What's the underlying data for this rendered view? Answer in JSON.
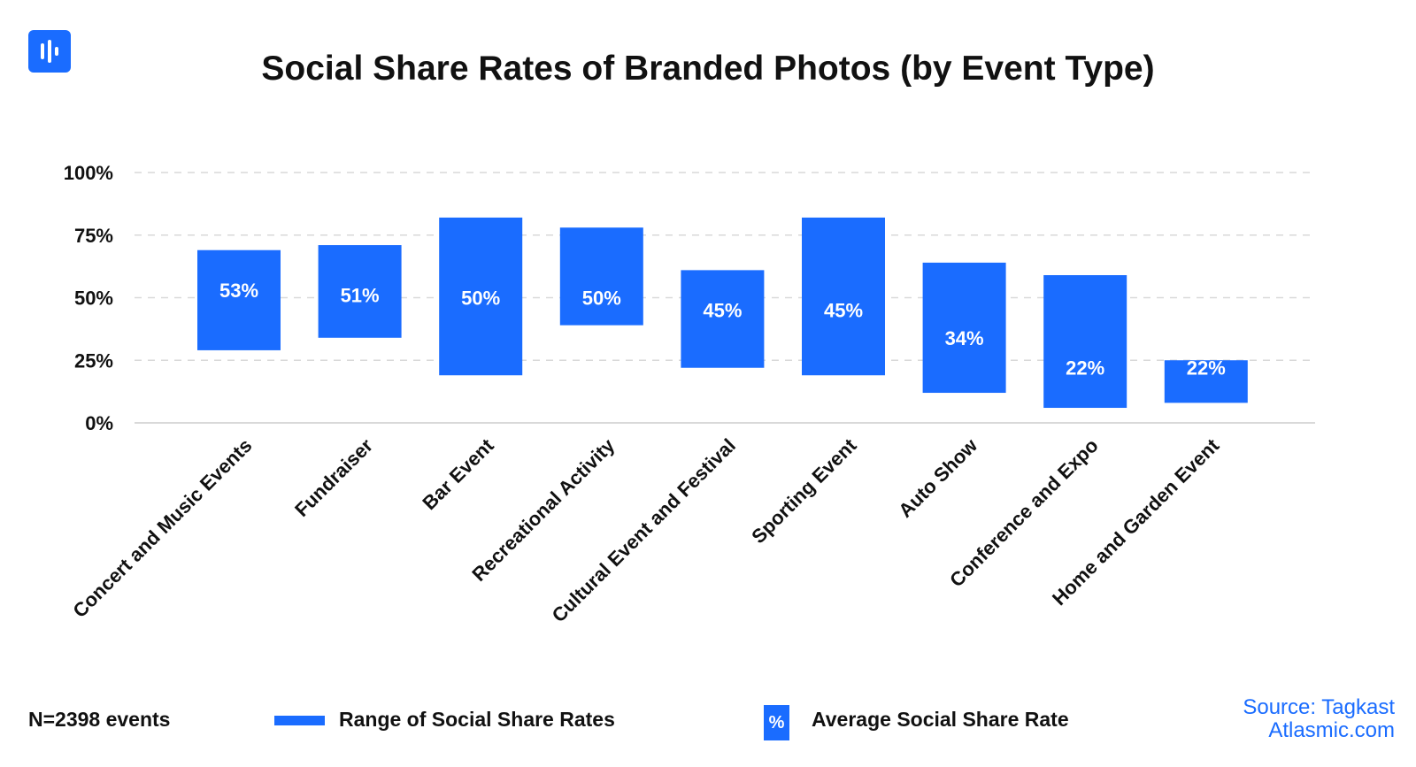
{
  "header": {
    "title": "Social Share Rates of Branded Photos (by Event Type)",
    "logo_icon": "audio-waveform-icon"
  },
  "colors": {
    "bar": "#1a6cff",
    "grid": "#d9d9d9",
    "text": "#111111",
    "source": "#1a6cff"
  },
  "chart_data": {
    "type": "bar",
    "title": "Social Share Rates of Branded Photos (by Event Type)",
    "xlabel": "",
    "ylabel": "",
    "ylim": [
      0,
      100
    ],
    "yticks": [
      "0%",
      "25%",
      "50%",
      "75%",
      "100%"
    ],
    "grid": true,
    "categories": [
      "Concert and Music Events",
      "Fundraiser",
      "Bar Event",
      "Recreational Activity",
      "Cultural Event and Festival",
      "Sporting Event",
      "Auto Show",
      "Conference and Expo",
      "Home and Garden Event"
    ],
    "ranges": [
      [
        29,
        69
      ],
      [
        34,
        71
      ],
      [
        19,
        82
      ],
      [
        39,
        78
      ],
      [
        22,
        61
      ],
      [
        19,
        82
      ],
      [
        12,
        64
      ],
      [
        6,
        59
      ],
      [
        8,
        25
      ]
    ],
    "averages": [
      53,
      51,
      50,
      50,
      45,
      45,
      34,
      22,
      22
    ],
    "average_labels": [
      "53%",
      "51%",
      "50%",
      "50%",
      "45%",
      "45%",
      "34%",
      "22%",
      "22%"
    ]
  },
  "footer": {
    "n_note": "N=2398 events",
    "legend_range_label": "Range of Social Share Rates",
    "legend_avg_symbol": "%",
    "legend_avg_label": "Average Social Share Rate",
    "source_line1": "Source: Tagkast",
    "source_line2": "Atlasmic.com"
  }
}
